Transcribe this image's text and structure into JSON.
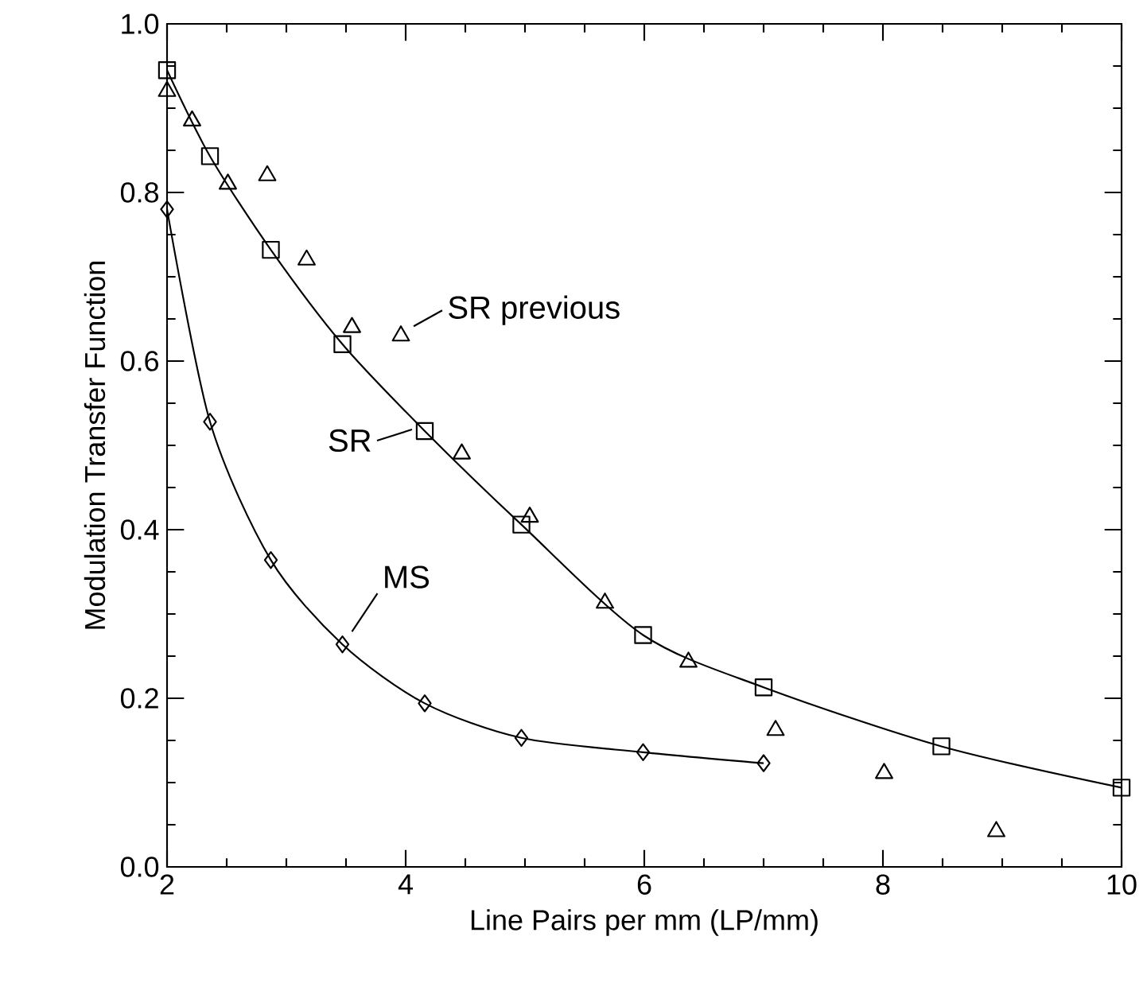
{
  "chart_data": {
    "type": "line",
    "xlabel": "Line Pairs per mm (LP/mm)",
    "ylabel": "Modulation Transfer Function",
    "xlim": [
      2,
      10
    ],
    "ylim": [
      0,
      1
    ],
    "xticks": [
      2,
      4,
      6,
      8,
      10
    ],
    "yticks": [
      {
        "value": 0,
        "label": "0.0"
      },
      {
        "value": 0.2,
        "label": "0.2"
      },
      {
        "value": 0.4,
        "label": "0.4"
      },
      {
        "value": 0.6,
        "label": "0.6"
      },
      {
        "value": 0.8,
        "label": "0.8"
      },
      {
        "value": 1,
        "label": "1.0"
      }
    ],
    "series": [
      {
        "marker": "square",
        "color": "#000000",
        "x": [
          2.0,
          2.36,
          2.87,
          3.47,
          4.16,
          4.97,
          5.99,
          7.0,
          8.49,
          10.0
        ],
        "values": [
          0.945,
          0.843,
          0.732,
          0.62,
          0.517,
          0.406,
          0.275,
          0.213,
          0.143,
          0.094
        ]
      },
      {
        "type": "scatter",
        "marker": "triangle",
        "color": "#000000",
        "x": [
          2.0,
          2.21,
          2.51,
          2.84,
          3.17,
          3.55,
          3.96,
          4.47,
          5.04,
          5.67,
          6.37,
          7.1,
          8.01,
          8.95
        ],
        "values": [
          0.92,
          0.885,
          0.81,
          0.82,
          0.72,
          0.64,
          0.63,
          0.49,
          0.415,
          0.313,
          0.243,
          0.162,
          0.111,
          0.042
        ]
      },
      {
        "marker": "diamond",
        "color": "#000000",
        "x": [
          2.0,
          2.36,
          2.87,
          3.47,
          4.16,
          4.97,
          5.99,
          7.0
        ],
        "values": [
          0.78,
          0.528,
          0.364,
          0.264,
          0.194,
          0.153,
          0.136,
          0.123
        ]
      }
    ],
    "annotations": [
      {
        "text": "SR previous",
        "x": 3.96,
        "y": 0.63
      },
      {
        "text": "SR",
        "x": 4.16,
        "y": 0.517
      },
      {
        "text": "MS",
        "x": 3.47,
        "y": 0.264
      }
    ]
  }
}
